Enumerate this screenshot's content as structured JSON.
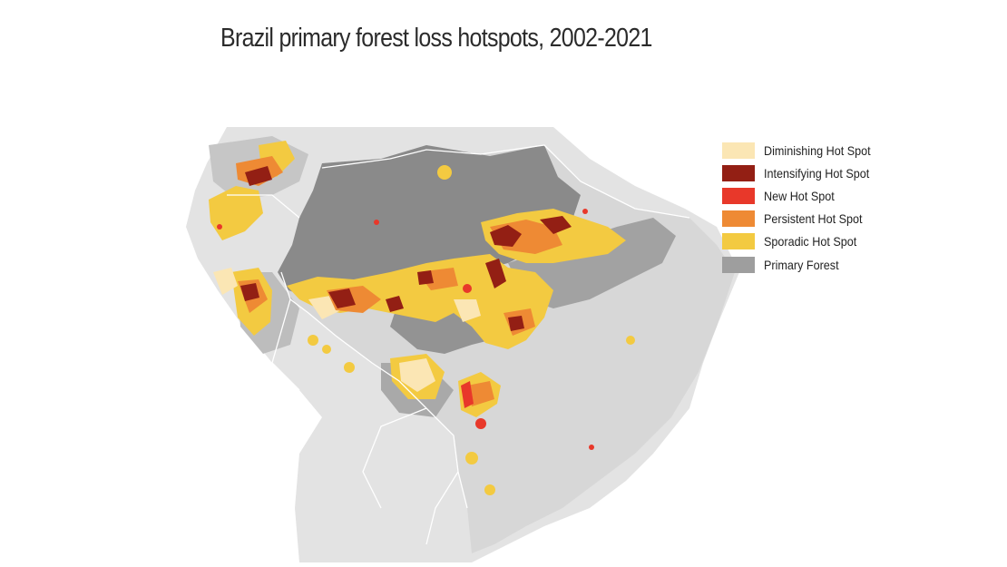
{
  "title": "Brazil primary forest loss hotspots, 2002-2021",
  "legend": {
    "items": [
      {
        "label": "Diminishing Hot Spot",
        "color": "#fbe6b4"
      },
      {
        "label": "Intensifying Hot Spot",
        "color": "#931f14"
      },
      {
        "label": "New Hot Spot",
        "color": "#e8382a"
      },
      {
        "label": "Persistent Hot Spot",
        "color": "#ee8a34"
      },
      {
        "label": "Sporadic Hot Spot",
        "color": "#f3ca41"
      },
      {
        "label": "Primary Forest",
        "color": "#9e9e9e"
      }
    ]
  }
}
